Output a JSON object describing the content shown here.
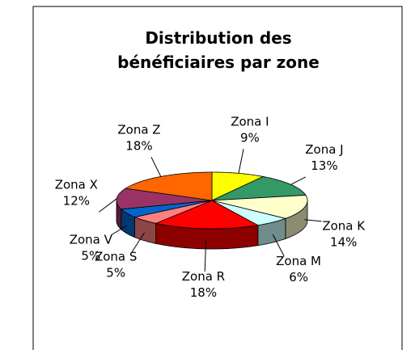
{
  "chart_data": {
    "type": "pie3d",
    "title": "Distribution des bénéficiaires par zone",
    "categories": [
      "Zona I",
      "Zona J",
      "Zona K",
      "Zona M",
      "Zona R",
      "Zona S",
      "Zona V",
      "Zona X",
      "Zona Z"
    ],
    "values": [
      9,
      13,
      14,
      6,
      18,
      5,
      5,
      12,
      18
    ],
    "value_labels": [
      "9%",
      "13%",
      "14%",
      "6%",
      "18%",
      "5%",
      "5%",
      "12%",
      "18%"
    ],
    "colors": [
      "#ffff00",
      "#339966",
      "#ffffcc",
      "#ccffff",
      "#ff0000",
      "#ff8080",
      "#0066cc",
      "#993366",
      "#ff6600"
    ]
  }
}
